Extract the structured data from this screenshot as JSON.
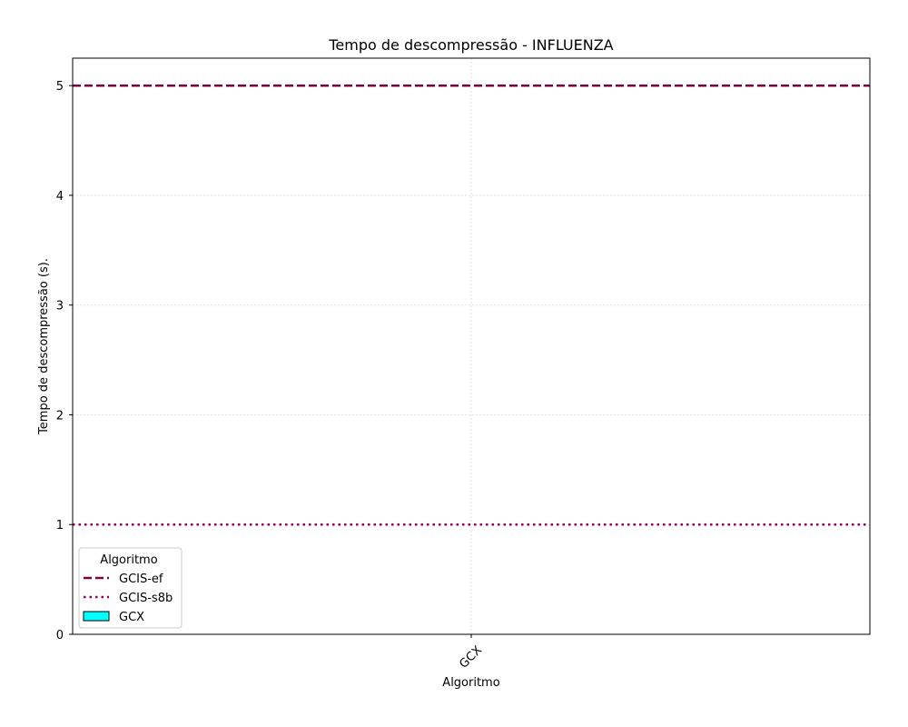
{
  "chart_data": {
    "type": "bar",
    "title": "Tempo de descompressão -  INFLUENZA",
    "xlabel": "Algoritmo",
    "ylabel": "Tempo de descompressão (s).",
    "categories": [
      "GCX"
    ],
    "series": [
      {
        "name": "GCX",
        "values": [
          0
        ],
        "color": "#00ffff"
      }
    ],
    "reference_lines": [
      {
        "name": "GCIS-ef",
        "value": 5,
        "style": "dashed",
        "color": "#800040"
      },
      {
        "name": "GCIS-s8b",
        "value": 1,
        "style": "dotted",
        "color": "#990066"
      }
    ],
    "yticks": [
      0,
      1,
      2,
      3,
      4,
      5
    ],
    "ylim": [
      0,
      5.25
    ],
    "grid": true,
    "legend": {
      "title": "Algoritmo",
      "placement": "lower-left",
      "entries": [
        "GCIS-ef",
        "GCIS-s8b",
        "GCX"
      ]
    }
  }
}
